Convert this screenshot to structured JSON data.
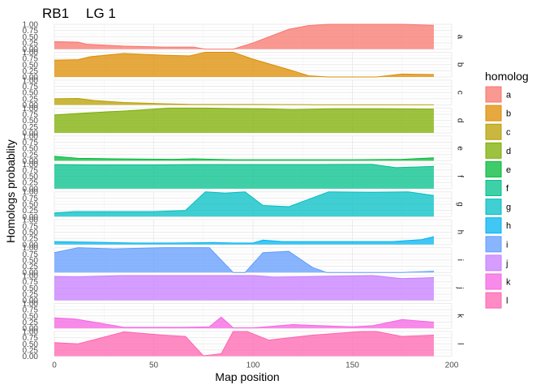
{
  "chart_data": {
    "type": "area",
    "title_left": "RB1",
    "title_right": "LG 1",
    "xlabel": "Map position",
    "ylabel": "Homologs probablity",
    "xlim": [
      0,
      200
    ],
    "x_ticks": [
      0,
      50,
      100,
      150,
      200
    ],
    "ylim": [
      0,
      1
    ],
    "y_ticks": [
      0,
      0.25,
      0.5,
      0.75,
      1
    ],
    "y_tick_labels": [
      "0.00",
      "0.25",
      "0.50",
      "0.75",
      "1.00"
    ],
    "grid": true,
    "legend": {
      "title": "homolog",
      "position": "right"
    },
    "series": [
      {
        "name": "a",
        "color": "#F8766D",
        "x": [
          0,
          12,
          16,
          35,
          55,
          70,
          76,
          90,
          100,
          118,
          128,
          138,
          162,
          175,
          191
        ],
        "y": [
          0.3,
          0.28,
          0.2,
          0.12,
          0.08,
          0.08,
          0.0,
          0.0,
          0.25,
          0.8,
          0.95,
          1.0,
          1.0,
          1.0,
          0.96
        ]
      },
      {
        "name": "b",
        "color": "#DE8C00",
        "x": [
          0,
          12,
          18,
          35,
          55,
          68,
          76,
          90,
          100,
          118,
          128,
          138,
          162,
          175,
          191
        ],
        "y": [
          0.68,
          0.7,
          0.82,
          0.95,
          0.88,
          0.85,
          1.0,
          1.0,
          0.72,
          0.3,
          0.05,
          0.0,
          0.0,
          0.12,
          0.1
        ]
      },
      {
        "name": "c",
        "color": "#B79F00",
        "x": [
          0,
          12,
          20,
          35,
          55,
          70,
          80,
          100,
          130,
          191
        ],
        "y": [
          0.25,
          0.26,
          0.18,
          0.1,
          0.05,
          0.02,
          0.02,
          0.02,
          0.01,
          0.01
        ]
      },
      {
        "name": "d",
        "color": "#7CAE00",
        "x": [
          0,
          15,
          35,
          58,
          75,
          90,
          105,
          120,
          140,
          165,
          191
        ],
        "y": [
          0.72,
          0.8,
          0.88,
          1.0,
          1.0,
          0.98,
          0.97,
          0.94,
          0.97,
          0.97,
          0.96
        ]
      },
      {
        "name": "e",
        "color": "#00BA38",
        "x": [
          0,
          12,
          30,
          60,
          70,
          90,
          120,
          150,
          175,
          191
        ],
        "y": [
          0.18,
          0.1,
          0.08,
          0.06,
          0.08,
          0.04,
          0.04,
          0.04,
          0.06,
          0.12
        ]
      },
      {
        "name": "f",
        "color": "#00C08B",
        "x": [
          0,
          20,
          50,
          70,
          90,
          110,
          130,
          150,
          160,
          172,
          191
        ],
        "y": [
          0.97,
          0.96,
          0.96,
          0.97,
          0.97,
          0.97,
          0.97,
          0.98,
          0.98,
          0.85,
          0.9
        ]
      },
      {
        "name": "g",
        "color": "#00BFC4",
        "x": [
          0,
          10,
          30,
          50,
          66,
          76,
          86,
          96,
          105,
          118,
          138,
          160,
          178,
          191
        ],
        "y": [
          0.15,
          0.2,
          0.2,
          0.2,
          0.25,
          1.0,
          0.95,
          1.0,
          0.45,
          0.4,
          1.0,
          0.98,
          1.0,
          0.85
        ]
      },
      {
        "name": "h",
        "color": "#00B4F0",
        "x": [
          0,
          15,
          40,
          60,
          80,
          90,
          100,
          105,
          115,
          130,
          150,
          170,
          185,
          191
        ],
        "y": [
          0.12,
          0.1,
          0.06,
          0.06,
          0.08,
          0.06,
          0.06,
          0.18,
          0.12,
          0.12,
          0.12,
          0.12,
          0.2,
          0.32
        ]
      },
      {
        "name": "i",
        "color": "#619CFF",
        "x": [
          0,
          12,
          30,
          55,
          70,
          78,
          90,
          96,
          105,
          118,
          130,
          137,
          150,
          175,
          191
        ],
        "y": [
          0.8,
          1.0,
          0.95,
          1.0,
          1.0,
          1.0,
          0.0,
          0.0,
          0.8,
          0.85,
          0.2,
          0.0,
          0.0,
          0.0,
          0.05
        ]
      },
      {
        "name": "j",
        "color": "#C77CFF",
        "x": [
          0,
          12,
          35,
          55,
          75,
          100,
          110,
          130,
          160,
          175,
          191
        ],
        "y": [
          0.96,
          0.95,
          1.0,
          1.0,
          1.0,
          1.0,
          0.94,
          0.96,
          1.0,
          0.88,
          0.92
        ]
      },
      {
        "name": "k",
        "color": "#F564E3",
        "x": [
          0,
          10,
          20,
          35,
          50,
          65,
          78,
          84,
          90,
          100,
          110,
          120,
          135,
          150,
          160,
          175,
          191
        ],
        "y": [
          0.42,
          0.38,
          0.25,
          0.04,
          0.04,
          0.04,
          0.06,
          0.45,
          0.02,
          0.02,
          0.08,
          0.15,
          0.1,
          0.06,
          0.1,
          0.35,
          0.25
        ]
      },
      {
        "name": "l",
        "color": "#FF64B0",
        "x": [
          0,
          12,
          35,
          55,
          66,
          75,
          84,
          90,
          97,
          108,
          130,
          155,
          162,
          175,
          191
        ],
        "y": [
          0.55,
          0.5,
          0.98,
          0.85,
          0.8,
          0.02,
          0.1,
          1.0,
          1.0,
          0.65,
          0.85,
          1.0,
          1.0,
          0.8,
          0.85
        ]
      }
    ]
  }
}
